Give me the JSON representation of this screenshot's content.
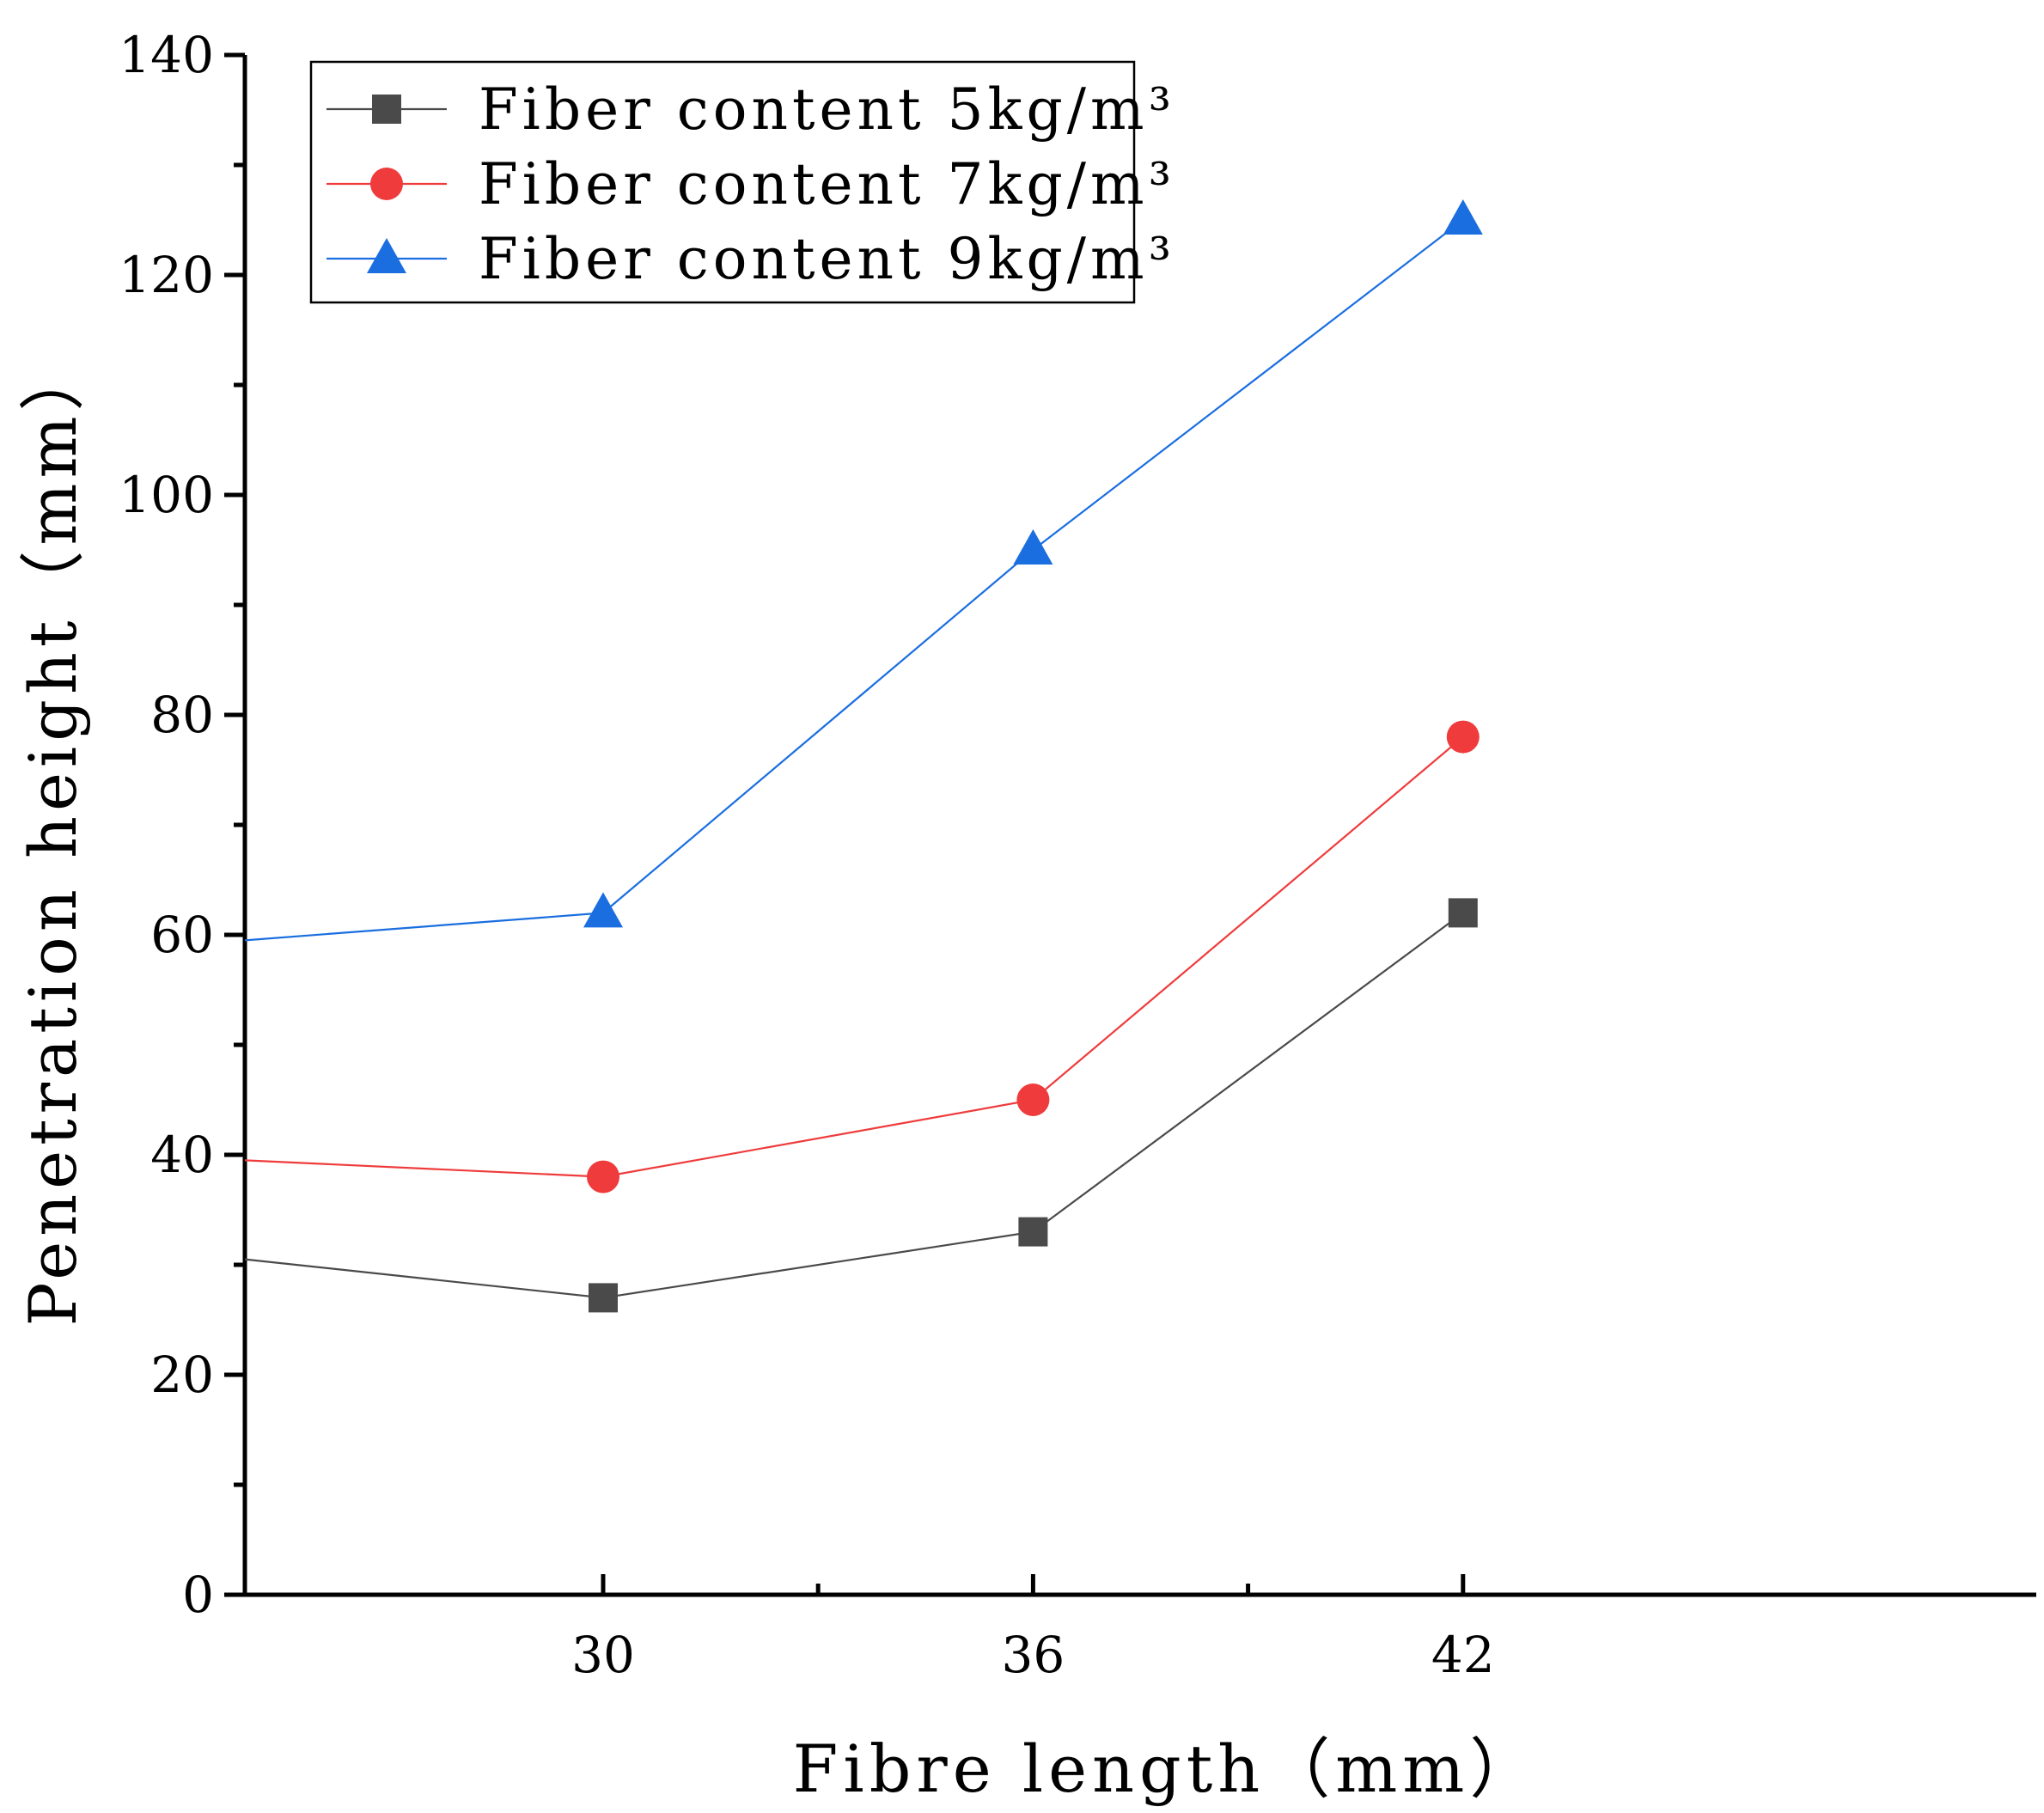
{
  "chart_data": {
    "type": "line",
    "title": "",
    "xlabel": "Fibre length（mm）",
    "ylabel": "Penetration height（mm）",
    "categories": [
      "30",
      "36",
      "42"
    ],
    "x": [
      30,
      36,
      42
    ],
    "xlim": [
      25,
      50
    ],
    "ylim": [
      0,
      140
    ],
    "y_ticks": [
      "0",
      "20",
      "40",
      "60",
      "80",
      "100",
      "120",
      "140"
    ],
    "grid": false,
    "legend_position": "top-left",
    "series": [
      {
        "name": "Fiber content 5kg/m³",
        "marker": "square",
        "color": "#4a4a4a",
        "x_start": 25,
        "y_start": 30.5,
        "values": [
          27,
          33,
          62
        ]
      },
      {
        "name": "Fiber content 7kg/m³",
        "marker": "circle",
        "color": "#ef3b3b",
        "x_start": 25,
        "y_start": 39.5,
        "values": [
          38,
          45,
          78
        ]
      },
      {
        "name": "Fiber content 9kg/m³",
        "marker": "triangle",
        "color": "#1a6ee0",
        "x_start": 25,
        "y_start": 59.5,
        "values": [
          62,
          95,
          125
        ]
      }
    ]
  }
}
